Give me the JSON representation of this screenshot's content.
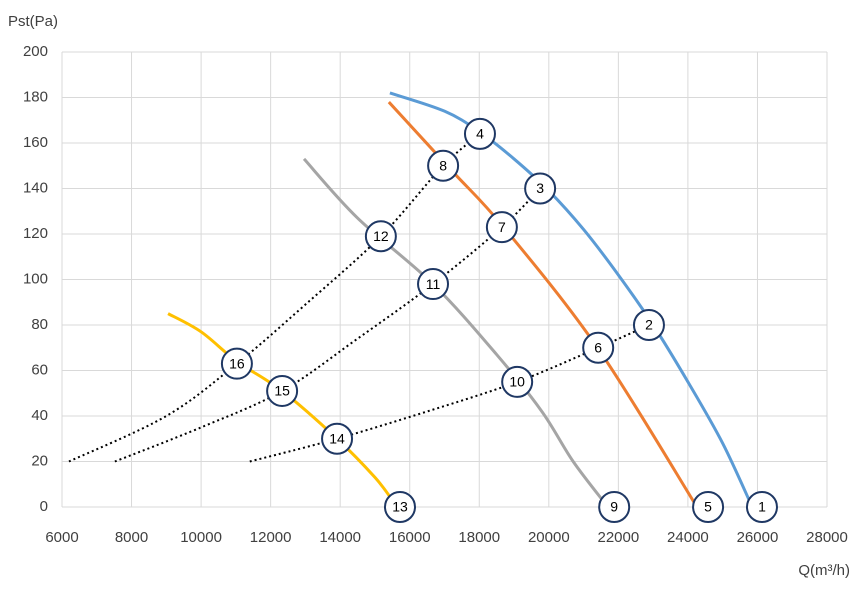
{
  "chart_data": {
    "type": "line",
    "y_label": "Pst(Pa)",
    "x_label": "Q(m³/h)",
    "xlim": [
      6000,
      28000
    ],
    "ylim": [
      0,
      200
    ],
    "xticks": [
      6000,
      8000,
      10000,
      12000,
      14000,
      16000,
      18000,
      20000,
      22000,
      24000,
      26000,
      28000
    ],
    "yticks": [
      0,
      20,
      40,
      60,
      80,
      100,
      120,
      140,
      160,
      180,
      200
    ],
    "grid": true,
    "series": [
      {
        "color": "#5b9bd5",
        "style": "solid",
        "x": [
          15430,
          17000,
          18000,
          19000,
          20000,
          21000,
          22000,
          23000,
          24000,
          25000,
          25850
        ],
        "values": [
          182,
          174,
          165,
          153,
          139,
          122,
          102,
          80,
          55,
          28,
          0
        ]
      },
      {
        "color": "#ed7d31",
        "style": "solid",
        "x": [
          15400,
          17200,
          18700,
          21400,
          24260
        ],
        "values": [
          178,
          148,
          123,
          70,
          0
        ]
      },
      {
        "color": "#a5a5a5",
        "style": "solid",
        "x": [
          12960,
          14500,
          16670,
          18500,
          19800,
          20700,
          21700
        ],
        "values": [
          153,
          127,
          98,
          67,
          42,
          20,
          0
        ]
      },
      {
        "color": "#ffc000",
        "style": "solid",
        "x": [
          9050,
          10000,
          11030,
          12330,
          13910,
          15000,
          15500
        ],
        "values": [
          85,
          77,
          64,
          51,
          30,
          13,
          3
        ]
      },
      {
        "color": "#000000",
        "style": "dotted",
        "x": [
          6200,
          9000,
          11030,
          13000,
          15170,
          16960,
          18020
        ],
        "values": [
          20,
          40,
          63,
          89,
          119,
          150,
          164
        ]
      },
      {
        "color": "#000000",
        "style": "dotted",
        "x": [
          7520,
          10000,
          12330,
          14500,
          16670,
          18650,
          19750
        ],
        "values": [
          20,
          35,
          51,
          74,
          98,
          123,
          140
        ]
      },
      {
        "color": "#000000",
        "style": "dotted",
        "x": [
          11400,
          13910,
          16500,
          19090,
          21420,
          22880
        ],
        "values": [
          20,
          30,
          42,
          55,
          70,
          80
        ]
      }
    ],
    "markers": [
      {
        "label": "1",
        "x": 26130,
        "y": 0
      },
      {
        "label": "2",
        "x": 22880,
        "y": 80
      },
      {
        "label": "3",
        "x": 19750,
        "y": 140
      },
      {
        "label": "4",
        "x": 18020,
        "y": 164
      },
      {
        "label": "5",
        "x": 24580,
        "y": 0
      },
      {
        "label": "6",
        "x": 21420,
        "y": 70
      },
      {
        "label": "7",
        "x": 18650,
        "y": 123
      },
      {
        "label": "8",
        "x": 16960,
        "y": 150
      },
      {
        "label": "9",
        "x": 21880,
        "y": 0
      },
      {
        "label": "10",
        "x": 19090,
        "y": 55
      },
      {
        "label": "11",
        "x": 16670,
        "y": 98
      },
      {
        "label": "12",
        "x": 15170,
        "y": 119
      },
      {
        "label": "13",
        "x": 15720,
        "y": 0
      },
      {
        "label": "14",
        "x": 13910,
        "y": 30
      },
      {
        "label": "15",
        "x": 12330,
        "y": 51
      },
      {
        "label": "16",
        "x": 11030,
        "y": 63
      }
    ]
  }
}
